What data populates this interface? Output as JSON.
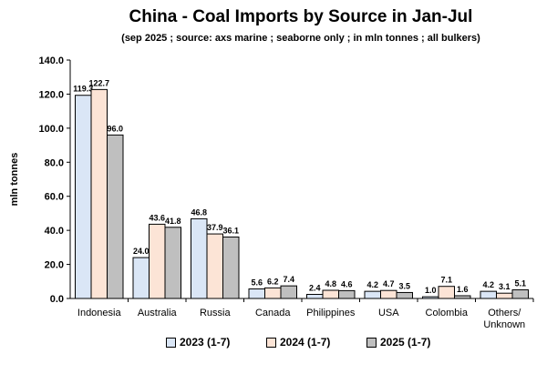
{
  "chart_data": {
    "type": "bar",
    "title": "China - Coal Imports by Source in Jan-Jul",
    "subtitle": "(sep 2025 ; source: axs marine ; seaborne only ; in mln tonnes ; all bulkers)",
    "ylabel": "mln tonnes",
    "xlabel": "",
    "ylim": [
      0,
      140
    ],
    "yticks": [
      "0.0",
      "20.0",
      "40.0",
      "60.0",
      "80.0",
      "100.0",
      "120.0",
      "140.0"
    ],
    "categories": [
      "Indonesia",
      "Australia",
      "Russia",
      "Canada",
      "Philippines",
      "USA",
      "Colombia",
      "Others/ Unknown"
    ],
    "series": [
      {
        "name": "2023 (1-7)",
        "color": "#dae6f6",
        "values": [
          119.3,
          24.0,
          46.8,
          5.6,
          2.4,
          4.2,
          1.0,
          4.2
        ],
        "labels": [
          "119.3",
          "24.0",
          "46.8",
          "5.6",
          "2.4",
          "4.2",
          "1.0",
          "4.2"
        ]
      },
      {
        "name": "2024 (1-7)",
        "color": "#fce4d6",
        "values": [
          122.7,
          43.6,
          37.9,
          6.2,
          4.8,
          4.7,
          7.1,
          3.1
        ],
        "labels": [
          "122.7",
          "43.6",
          "37.9",
          "6.2",
          "4.8",
          "4.7",
          "7.1",
          "3.1"
        ]
      },
      {
        "name": "2025 (1-7)",
        "color": "#bfbfbf",
        "values": [
          96.0,
          41.8,
          36.1,
          7.4,
          4.6,
          3.5,
          1.6,
          5.1
        ],
        "labels": [
          "96.0",
          "41.8",
          "36.1",
          "7.4",
          "4.6",
          "3.5",
          "1.6",
          "5.1"
        ]
      }
    ],
    "grid": false,
    "legend_position": "bottom"
  }
}
